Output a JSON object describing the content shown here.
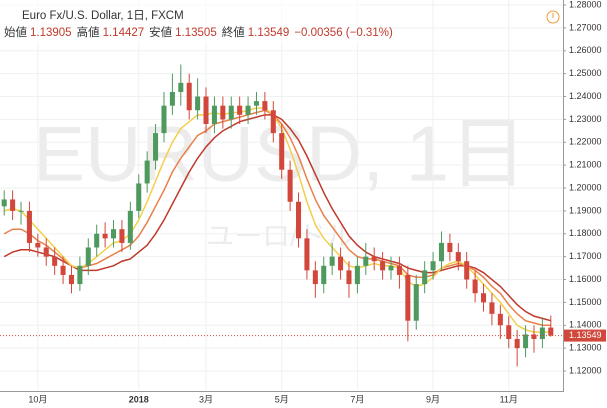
{
  "chart_data": {
    "type": "candlestick",
    "title": "Euro Fx/U.S. Dollar, 1日, FXCM",
    "stats": [
      {
        "label": "始値",
        "value": "1.13905"
      },
      {
        "label": "高値",
        "value": "1.14427"
      },
      {
        "label": "安値",
        "value": "1.13505"
      },
      {
        "label": "終値",
        "value": "1.13549"
      }
    ],
    "change": "−0.00356 (−0.31%)",
    "watermark": "EURUSD, 1日",
    "watermark_sub": "ユーロ/ドル",
    "categories": [
      null,
      null,
      null,
      null,
      "10月",
      null,
      null,
      null,
      null,
      null,
      null,
      null,
      null,
      null,
      null,
      null,
      "2018",
      null,
      null,
      null,
      null,
      null,
      null,
      null,
      "3月",
      null,
      null,
      null,
      null,
      null,
      null,
      null,
      null,
      "5月",
      null,
      null,
      null,
      null,
      null,
      null,
      null,
      null,
      "7月",
      null,
      null,
      null,
      null,
      null,
      null,
      null,
      null,
      "9月",
      null,
      null,
      null,
      null,
      null,
      null,
      null,
      null,
      "11月",
      null,
      null,
      null,
      null,
      null
    ],
    "open": [
      1.192,
      1.195,
      1.19,
      1.19,
      1.176,
      1.174,
      1.17,
      1.166,
      1.162,
      1.158,
      1.166,
      1.174,
      1.18,
      1.178,
      1.182,
      1.176,
      1.19,
      1.202,
      1.212,
      1.224,
      1.236,
      1.242,
      1.246,
      1.234,
      1.24,
      1.228,
      1.236,
      1.23,
      1.236,
      1.232,
      1.236,
      1.238,
      1.234,
      1.224,
      1.208,
      1.194,
      1.178,
      1.164,
      1.158,
      1.166,
      1.17,
      1.164,
      1.158,
      1.166,
      1.17,
      1.168,
      1.164,
      1.166,
      1.162,
      1.142,
      1.158,
      1.164,
      1.168,
      1.176,
      1.172,
      1.168,
      1.16,
      1.154,
      1.15,
      1.145,
      1.14,
      1.134,
      1.13,
      1.136,
      1.134,
      1.139
    ],
    "high": [
      1.199,
      1.199,
      1.194,
      1.194,
      1.18,
      1.178,
      1.174,
      1.17,
      1.166,
      1.17,
      1.178,
      1.184,
      1.185,
      1.186,
      1.186,
      1.194,
      1.206,
      1.216,
      1.228,
      1.242,
      1.25,
      1.254,
      1.25,
      1.248,
      1.244,
      1.24,
      1.24,
      1.24,
      1.24,
      1.24,
      1.242,
      1.242,
      1.238,
      1.228,
      1.212,
      1.198,
      1.182,
      1.168,
      1.17,
      1.176,
      1.174,
      1.168,
      1.17,
      1.176,
      1.174,
      1.172,
      1.17,
      1.17,
      1.166,
      1.162,
      1.168,
      1.172,
      1.181,
      1.18,
      1.176,
      1.172,
      1.164,
      1.158,
      1.154,
      1.149,
      1.144,
      1.138,
      1.14,
      1.14,
      1.143,
      1.14427
    ],
    "low": [
      1.188,
      1.186,
      1.184,
      1.172,
      1.17,
      1.166,
      1.162,
      1.158,
      1.154,
      1.155,
      1.162,
      1.17,
      1.174,
      1.174,
      1.172,
      1.173,
      1.187,
      1.198,
      1.208,
      1.22,
      1.232,
      1.236,
      1.23,
      1.23,
      1.224,
      1.224,
      1.226,
      1.226,
      1.228,
      1.228,
      1.232,
      1.23,
      1.22,
      1.204,
      1.19,
      1.174,
      1.16,
      1.152,
      1.154,
      1.162,
      1.16,
      1.152,
      1.154,
      1.162,
      1.164,
      1.16,
      1.16,
      1.156,
      1.133,
      1.138,
      1.154,
      1.16,
      1.164,
      1.168,
      1.164,
      1.156,
      1.15,
      1.146,
      1.14,
      1.134,
      1.13,
      1.122,
      1.126,
      1.128,
      1.13,
      1.13505
    ],
    "close": [
      1.195,
      1.19,
      1.19,
      1.176,
      1.174,
      1.17,
      1.166,
      1.162,
      1.158,
      1.166,
      1.174,
      1.18,
      1.178,
      1.182,
      1.176,
      1.19,
      1.202,
      1.212,
      1.224,
      1.236,
      1.242,
      1.246,
      1.234,
      1.24,
      1.228,
      1.236,
      1.23,
      1.236,
      1.232,
      1.236,
      1.238,
      1.234,
      1.224,
      1.208,
      1.194,
      1.178,
      1.164,
      1.158,
      1.166,
      1.17,
      1.164,
      1.158,
      1.166,
      1.17,
      1.168,
      1.164,
      1.166,
      1.162,
      1.142,
      1.158,
      1.164,
      1.168,
      1.176,
      1.172,
      1.168,
      1.16,
      1.154,
      1.15,
      1.145,
      1.14,
      1.134,
      1.13,
      1.136,
      1.134,
      1.139,
      1.13549
    ],
    "up_color": "#4e9a5e",
    "down_color": "#d2473b",
    "series": [
      {
        "color": "#c0392b",
        "values": [
          1.17,
          1.172,
          1.173,
          1.173,
          1.172,
          1.171,
          1.17,
          1.168,
          1.166,
          1.164,
          1.164,
          1.164,
          1.165,
          1.166,
          1.168,
          1.169,
          1.172,
          1.175,
          1.18,
          1.186,
          1.193,
          1.2,
          1.207,
          1.213,
          1.218,
          1.222,
          1.225,
          1.227,
          1.229,
          1.23,
          1.231,
          1.232,
          1.232,
          1.23,
          1.226,
          1.221,
          1.214,
          1.206,
          1.198,
          1.191,
          1.185,
          1.179,
          1.175,
          1.172,
          1.17,
          1.169,
          1.168,
          1.167,
          1.165,
          1.164,
          1.163,
          1.163,
          1.164,
          1.165,
          1.166,
          1.166,
          1.165,
          1.163,
          1.16,
          1.157,
          1.153,
          1.149,
          1.146,
          1.144,
          1.143,
          1.142
        ]
      },
      {
        "color": "#e8804a",
        "values": [
          1.18,
          1.182,
          1.182,
          1.18,
          1.177,
          1.175,
          1.172,
          1.169,
          1.166,
          1.165,
          1.166,
          1.167,
          1.169,
          1.171,
          1.173,
          1.175,
          1.179,
          1.185,
          1.192,
          1.199,
          1.207,
          1.213,
          1.218,
          1.223,
          1.225,
          1.228,
          1.229,
          1.23,
          1.231,
          1.232,
          1.233,
          1.234,
          1.232,
          1.228,
          1.222,
          1.214,
          1.204,
          1.195,
          1.188,
          1.183,
          1.178,
          1.173,
          1.17,
          1.169,
          1.169,
          1.168,
          1.167,
          1.166,
          1.162,
          1.161,
          1.161,
          1.162,
          1.165,
          1.166,
          1.167,
          1.166,
          1.164,
          1.161,
          1.157,
          1.154,
          1.149,
          1.145,
          1.142,
          1.141,
          1.14,
          1.14
        ]
      },
      {
        "color": "#f3cf4c",
        "values": [
          1.19,
          1.191,
          1.19,
          1.186,
          1.182,
          1.178,
          1.174,
          1.17,
          1.166,
          1.165,
          1.167,
          1.17,
          1.173,
          1.176,
          1.177,
          1.18,
          1.186,
          1.194,
          1.203,
          1.212,
          1.22,
          1.226,
          1.229,
          1.232,
          1.232,
          1.233,
          1.232,
          1.233,
          1.233,
          1.234,
          1.235,
          1.235,
          1.232,
          1.226,
          1.217,
          1.206,
          1.194,
          1.184,
          1.178,
          1.174,
          1.17,
          1.166,
          1.165,
          1.166,
          1.167,
          1.166,
          1.166,
          1.165,
          1.159,
          1.157,
          1.158,
          1.161,
          1.165,
          1.167,
          1.168,
          1.166,
          1.162,
          1.158,
          1.154,
          1.15,
          1.145,
          1.14,
          1.138,
          1.137,
          1.137,
          1.137
        ]
      }
    ],
    "ylim": [
      1.1117,
      1.2822
    ],
    "yticks": [
      {
        "value": 1.12,
        "label": "1.12000"
      },
      {
        "value": 1.13,
        "label": "1.13000"
      },
      {
        "value": 1.14,
        "label": "1.14000"
      },
      {
        "value": 1.15,
        "label": "1.15000"
      },
      {
        "value": 1.16,
        "label": "1.16000"
      },
      {
        "value": 1.17,
        "label": "1.17000"
      },
      {
        "value": 1.18,
        "label": "1.18000"
      },
      {
        "value": 1.19,
        "label": "1.19000"
      },
      {
        "value": 1.2,
        "label": "1.20000"
      },
      {
        "value": 1.21,
        "label": "1.21000"
      },
      {
        "value": 1.22,
        "label": "1.22000"
      },
      {
        "value": 1.23,
        "label": "1.23000"
      },
      {
        "value": 1.24,
        "label": "1.24000"
      },
      {
        "value": 1.25,
        "label": "1.25000"
      },
      {
        "value": 1.26,
        "label": "1.26000"
      },
      {
        "value": 1.27,
        "label": "1.27000"
      },
      {
        "value": 1.28,
        "label": "1.28000"
      }
    ],
    "last_price": {
      "value": 1.13549,
      "label": "1.13549"
    },
    "grid": true
  }
}
